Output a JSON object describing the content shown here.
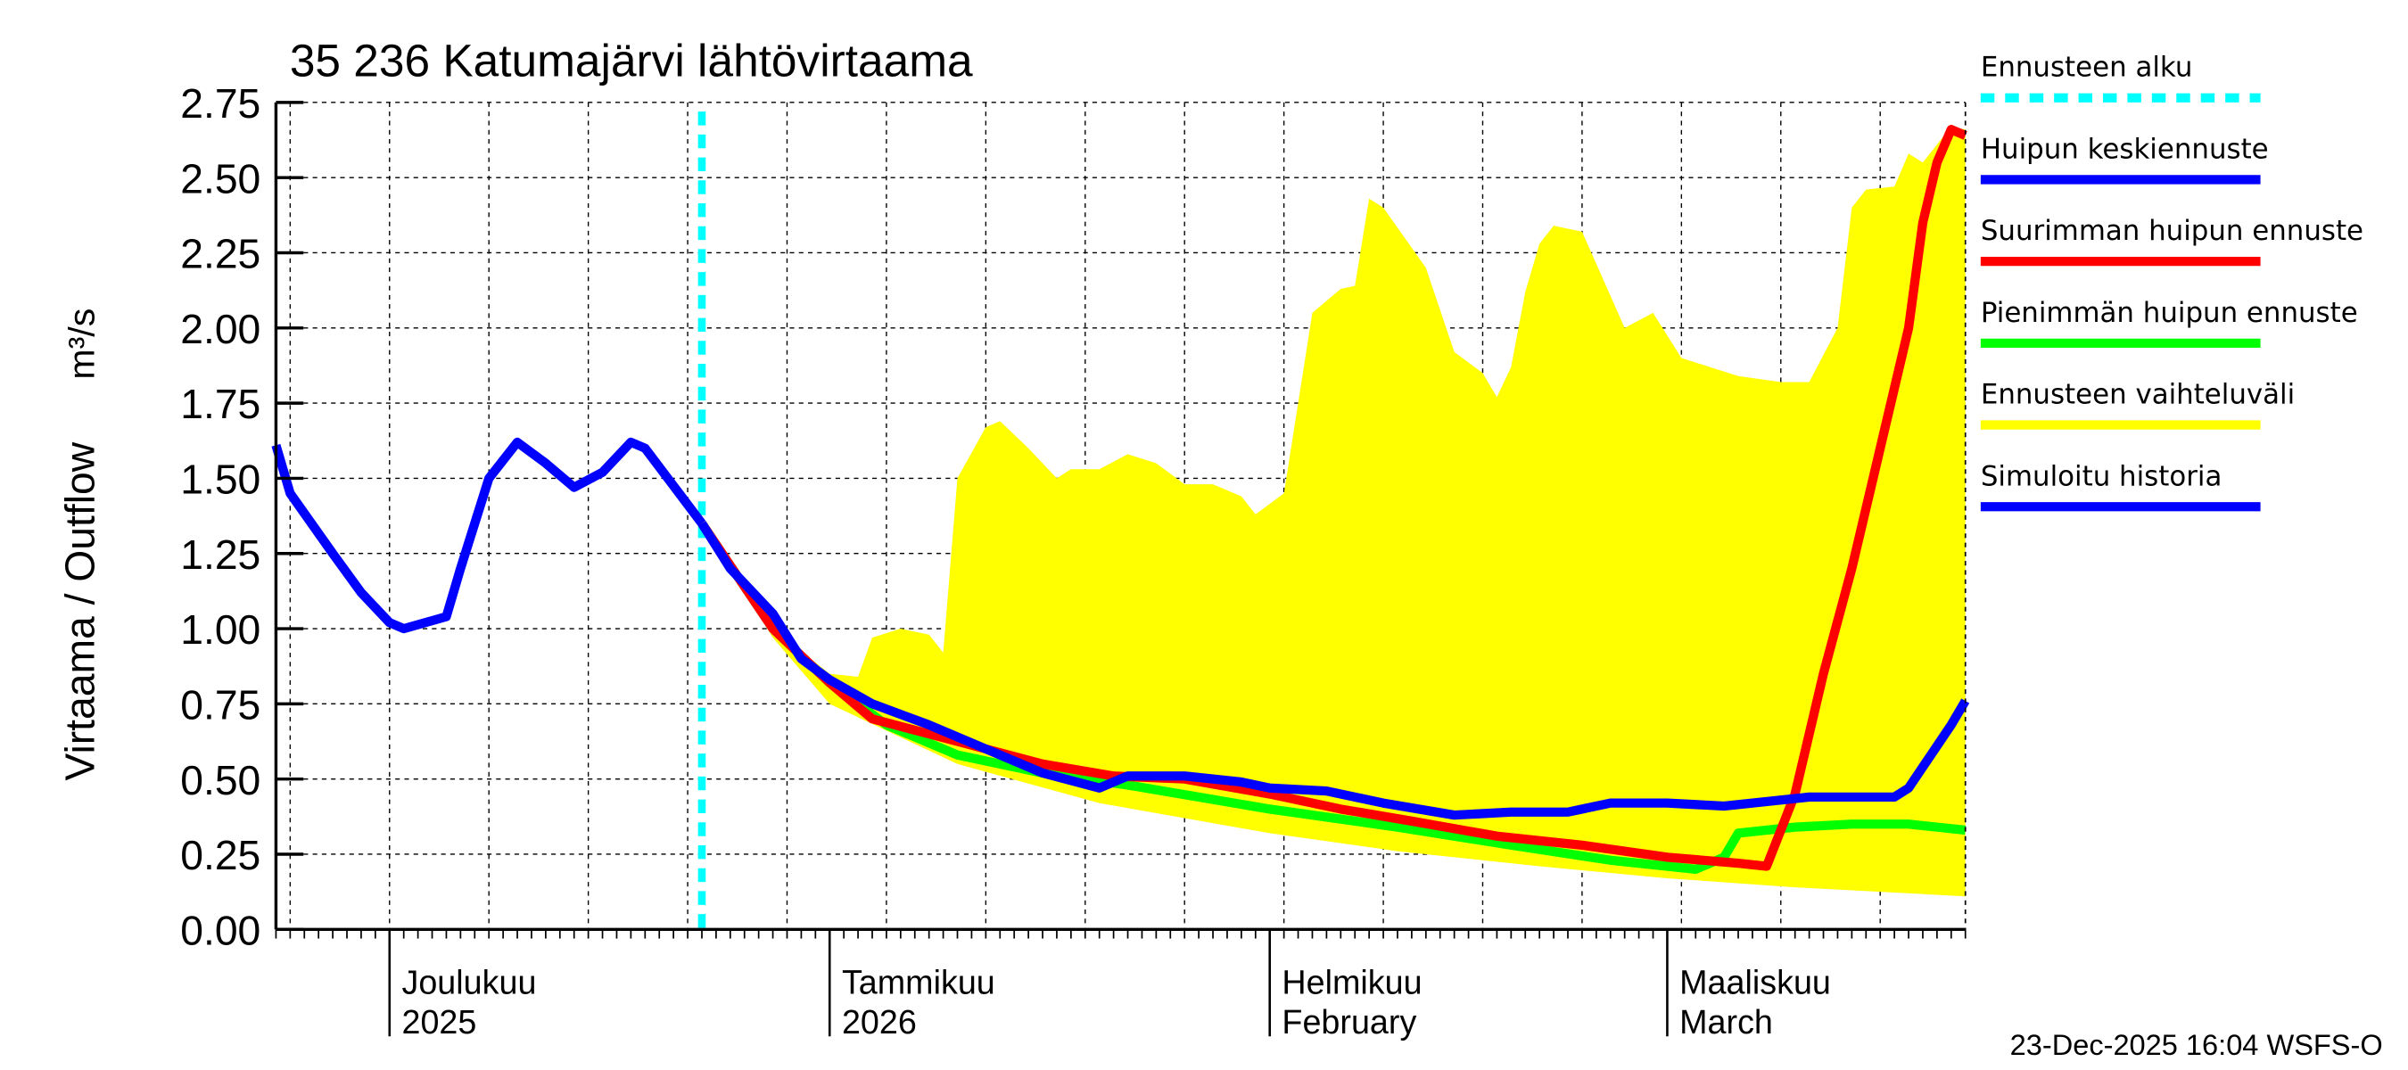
{
  "chart_data": {
    "type": "line",
    "title": "35 236 Katumajärvi lähtövirtaama",
    "ylabel": "Virtaama / Outflow",
    "yunit": "m³/s",
    "ylim": [
      0,
      2.75
    ],
    "yticks": [
      "0.00",
      "0.25",
      "0.50",
      "0.75",
      "1.00",
      "1.25",
      "1.50",
      "1.75",
      "2.00",
      "2.25",
      "2.50",
      "2.75"
    ],
    "xlim": [
      "2025-11-23",
      "2026-03-22"
    ],
    "grid": true,
    "legend_placement": "right",
    "month_labels": [
      {
        "date": "2025-12-01",
        "line1": "Joulukuu",
        "line2": "2025"
      },
      {
        "date": "2026-01-01",
        "line1": "Tammikuu",
        "line2": "2026"
      },
      {
        "date": "2026-02-01",
        "line1": "Helmikuu",
        "line2": "February"
      },
      {
        "date": "2026-03-01",
        "line1": "Maaliskuu",
        "line2": "March"
      }
    ],
    "forecast_start": "2025-12-23",
    "footer": "23-Dec-2025 16:04 WSFS-O",
    "legend": [
      {
        "label": "Ennusteen alku",
        "color": "#00ffff",
        "style": "dashed"
      },
      {
        "label": "Huipun keskiennuste",
        "color": "#0000ff",
        "style": "solid"
      },
      {
        "label": "Suurimman huipun ennuste",
        "color": "#ff0000",
        "style": "solid"
      },
      {
        "label": "Pienimmän huipun ennuste",
        "color": "#00ff00",
        "style": "solid"
      },
      {
        "label": "Ennusteen vaihteluväli",
        "color": "#ffff00",
        "style": "solid"
      },
      {
        "label": "Simuloitu historia",
        "color": "#0000ff",
        "style": "solid"
      }
    ],
    "band": {
      "name": "Ennusteen vaihteluväli",
      "upper": [
        [
          "2025-12-23",
          1.35
        ],
        [
          "2025-12-28",
          1.0
        ],
        [
          "2026-01-01",
          0.85
        ],
        [
          "2026-01-03",
          0.84
        ],
        [
          "2026-01-04",
          0.97
        ],
        [
          "2026-01-06",
          1.0
        ],
        [
          "2026-01-08",
          0.98
        ],
        [
          "2026-01-09",
          0.92
        ],
        [
          "2026-01-10",
          1.5
        ],
        [
          "2026-01-12",
          1.67
        ],
        [
          "2026-01-13",
          1.69
        ],
        [
          "2026-01-15",
          1.6
        ],
        [
          "2026-01-17",
          1.5
        ],
        [
          "2026-01-18",
          1.53
        ],
        [
          "2026-01-20",
          1.53
        ],
        [
          "2026-01-22",
          1.58
        ],
        [
          "2026-01-24",
          1.55
        ],
        [
          "2026-01-26",
          1.48
        ],
        [
          "2026-01-28",
          1.48
        ],
        [
          "2026-01-30",
          1.44
        ],
        [
          "2026-01-31",
          1.38
        ],
        [
          "2026-02-02",
          1.45
        ],
        [
          "2026-02-03",
          1.75
        ],
        [
          "2026-02-04",
          2.05
        ],
        [
          "2026-02-06",
          2.13
        ],
        [
          "2026-02-07",
          2.14
        ],
        [
          "2026-02-08",
          2.43
        ],
        [
          "2026-02-09",
          2.4
        ],
        [
          "2026-02-12",
          2.2
        ],
        [
          "2026-02-14",
          1.92
        ],
        [
          "2026-02-16",
          1.85
        ],
        [
          "2026-02-17",
          1.77
        ],
        [
          "2026-02-18",
          1.87
        ],
        [
          "2026-02-19",
          2.12
        ],
        [
          "2026-02-20",
          2.28
        ],
        [
          "2026-02-21",
          2.34
        ],
        [
          "2026-02-23",
          2.32
        ],
        [
          "2026-02-26",
          2.0
        ],
        [
          "2026-02-28",
          2.05
        ],
        [
          "2026-03-02",
          1.9
        ],
        [
          "2026-03-06",
          1.84
        ],
        [
          "2026-03-09",
          1.82
        ],
        [
          "2026-03-11",
          1.82
        ],
        [
          "2026-03-13",
          2.0
        ],
        [
          "2026-03-14",
          2.4
        ],
        [
          "2026-03-15",
          2.46
        ],
        [
          "2026-03-17",
          2.47
        ],
        [
          "2026-03-18",
          2.58
        ],
        [
          "2026-03-19",
          2.55
        ],
        [
          "2026-03-21",
          2.67
        ],
        [
          "2026-03-22",
          2.66
        ]
      ],
      "lower": [
        [
          "2025-12-23",
          1.35
        ],
        [
          "2025-12-28",
          0.97
        ],
        [
          "2026-01-01",
          0.75
        ],
        [
          "2026-01-10",
          0.55
        ],
        [
          "2026-01-20",
          0.42
        ],
        [
          "2026-02-01",
          0.32
        ],
        [
          "2026-02-10",
          0.26
        ],
        [
          "2026-02-20",
          0.21
        ],
        [
          "2026-03-01",
          0.17
        ],
        [
          "2026-03-10",
          0.14
        ],
        [
          "2026-03-22",
          0.11
        ]
      ]
    },
    "series": [
      {
        "name": "Simuloitu historia",
        "color": "#0000ff",
        "points": [
          [
            "2025-11-23",
            1.61
          ],
          [
            "2025-11-24",
            1.45
          ],
          [
            "2025-11-27",
            1.25
          ],
          [
            "2025-11-29",
            1.12
          ],
          [
            "2025-12-01",
            1.02
          ],
          [
            "2025-12-02",
            1.0
          ],
          [
            "2025-12-05",
            1.04
          ],
          [
            "2025-12-06",
            1.2
          ],
          [
            "2025-12-08",
            1.5
          ],
          [
            "2025-12-10",
            1.62
          ],
          [
            "2025-12-12",
            1.55
          ],
          [
            "2025-12-14",
            1.47
          ],
          [
            "2025-12-16",
            1.52
          ],
          [
            "2025-12-18",
            1.62
          ],
          [
            "2025-12-19",
            1.6
          ],
          [
            "2025-12-23",
            1.35
          ]
        ]
      },
      {
        "name": "Pienimmän huipun ennuste",
        "color": "#00ff00",
        "points": [
          [
            "2025-12-23",
            1.35
          ],
          [
            "2025-12-28",
            1.0
          ],
          [
            "2026-01-01",
            0.82
          ],
          [
            "2026-01-05",
            0.68
          ],
          [
            "2026-01-10",
            0.58
          ],
          [
            "2026-01-16",
            0.52
          ],
          [
            "2026-01-22",
            0.48
          ],
          [
            "2026-02-01",
            0.4
          ],
          [
            "2026-02-10",
            0.34
          ],
          [
            "2026-02-18",
            0.28
          ],
          [
            "2026-02-25",
            0.23
          ],
          [
            "2026-03-03",
            0.2
          ],
          [
            "2026-03-05",
            0.24
          ],
          [
            "2026-03-06",
            0.32
          ],
          [
            "2026-03-10",
            0.34
          ],
          [
            "2026-03-14",
            0.35
          ],
          [
            "2026-03-18",
            0.35
          ],
          [
            "2026-03-22",
            0.33
          ]
        ]
      },
      {
        "name": "Suurimman huipun ennuste",
        "color": "#ff0000",
        "points": [
          [
            "2025-12-23",
            1.35
          ],
          [
            "2025-12-28",
            1.0
          ],
          [
            "2026-01-01",
            0.82
          ],
          [
            "2026-01-04",
            0.7
          ],
          [
            "2026-01-08",
            0.65
          ],
          [
            "2026-01-12",
            0.6
          ],
          [
            "2026-01-16",
            0.55
          ],
          [
            "2026-01-21",
            0.51
          ],
          [
            "2026-01-26",
            0.5
          ],
          [
            "2026-02-01",
            0.45
          ],
          [
            "2026-02-06",
            0.4
          ],
          [
            "2026-02-11",
            0.36
          ],
          [
            "2026-02-17",
            0.31
          ],
          [
            "2026-02-23",
            0.28
          ],
          [
            "2026-03-01",
            0.24
          ],
          [
            "2026-03-06",
            0.22
          ],
          [
            "2026-03-08",
            0.21
          ],
          [
            "2026-03-10",
            0.45
          ],
          [
            "2026-03-12",
            0.85
          ],
          [
            "2026-03-14",
            1.2
          ],
          [
            "2026-03-16",
            1.6
          ],
          [
            "2026-03-18",
            2.0
          ],
          [
            "2026-03-19",
            2.35
          ],
          [
            "2026-03-20",
            2.55
          ],
          [
            "2026-03-21",
            2.66
          ],
          [
            "2026-03-22",
            2.64
          ]
        ]
      },
      {
        "name": "Huipun keskiennuste",
        "color": "#0000ff",
        "points": [
          [
            "2025-12-23",
            1.35
          ],
          [
            "2025-12-25",
            1.2
          ],
          [
            "2025-12-28",
            1.05
          ],
          [
            "2025-12-30",
            0.9
          ],
          [
            "2026-01-01",
            0.83
          ],
          [
            "2026-01-04",
            0.75
          ],
          [
            "2026-01-08",
            0.68
          ],
          [
            "2026-01-12",
            0.6
          ],
          [
            "2026-01-16",
            0.52
          ],
          [
            "2026-01-20",
            0.47
          ],
          [
            "2026-01-22",
            0.51
          ],
          [
            "2026-01-26",
            0.51
          ],
          [
            "2026-01-30",
            0.49
          ],
          [
            "2026-02-01",
            0.47
          ],
          [
            "2026-02-05",
            0.46
          ],
          [
            "2026-02-09",
            0.42
          ],
          [
            "2026-02-14",
            0.38
          ],
          [
            "2026-02-18",
            0.39
          ],
          [
            "2026-02-22",
            0.39
          ],
          [
            "2026-02-25",
            0.42
          ],
          [
            "2026-03-01",
            0.42
          ],
          [
            "2026-03-05",
            0.41
          ],
          [
            "2026-03-11",
            0.44
          ],
          [
            "2026-03-17",
            0.44
          ],
          [
            "2026-03-18",
            0.47
          ],
          [
            "2026-03-21",
            0.68
          ],
          [
            "2026-03-22",
            0.76
          ]
        ]
      }
    ]
  }
}
